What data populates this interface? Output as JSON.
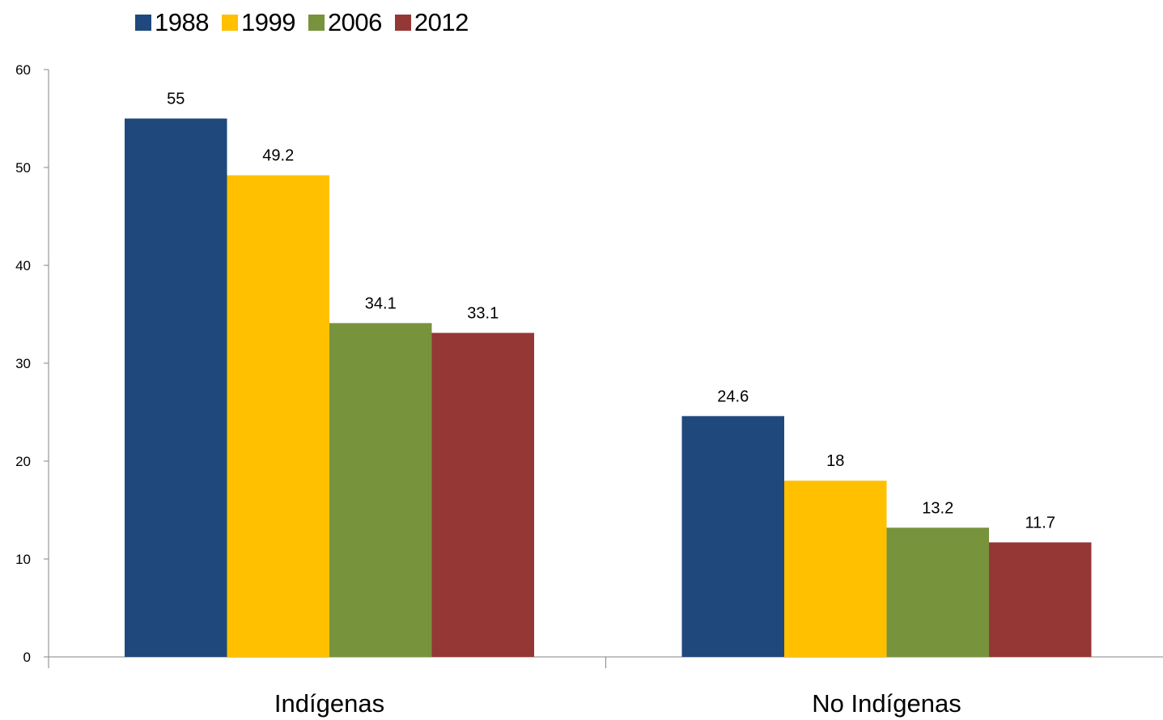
{
  "chart_data": {
    "type": "bar",
    "categories": [
      "Indígenas",
      "No Indígenas"
    ],
    "series": [
      {
        "name": "1988",
        "color": "#1F497D",
        "values": [
          55,
          24.6
        ]
      },
      {
        "name": "1999",
        "color": "#FFC000",
        "values": [
          49.2,
          18
        ]
      },
      {
        "name": "2006",
        "color": "#77933C",
        "values": [
          34.1,
          13.2
        ]
      },
      {
        "name": "2012",
        "color": "#953735",
        "values": [
          33.1,
          11.7
        ]
      }
    ],
    "ylim": [
      0,
      60
    ],
    "yticks": [
      0,
      10,
      20,
      30,
      40,
      50,
      60
    ],
    "legend_position": "top-left",
    "grid": false
  }
}
